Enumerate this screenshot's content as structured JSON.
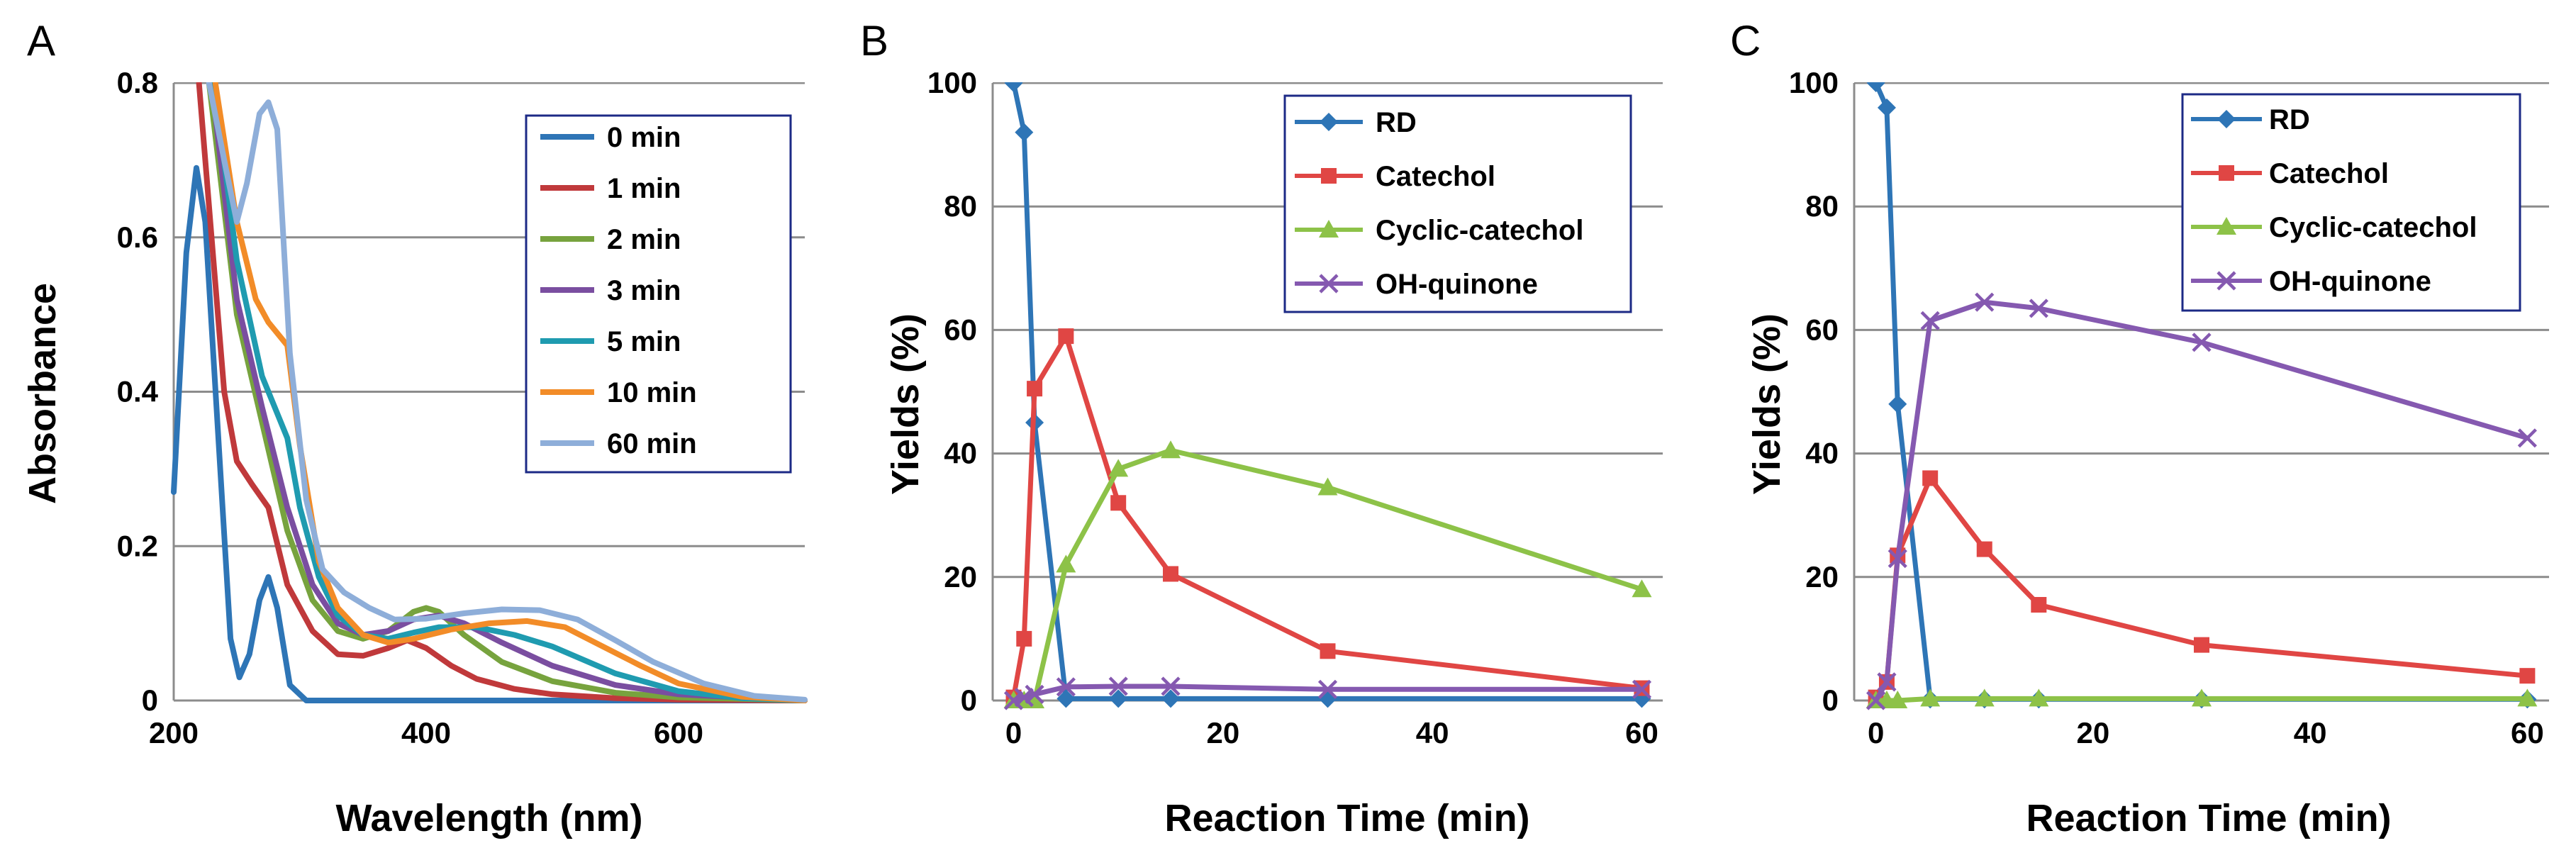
{
  "chart_data": [
    {
      "panel": "A",
      "type": "line",
      "xlabel": "Wavelength (nm)",
      "ylabel": "Absorbance",
      "xlim": [
        200,
        700
      ],
      "ylim": [
        0,
        0.8
      ],
      "xticks": [
        200,
        400,
        600
      ],
      "yticks": [
        0,
        0.2,
        0.4,
        0.6,
        0.8
      ],
      "xtick_labels": [
        "200",
        "400",
        "600"
      ],
      "ytick_labels": [
        "0",
        "0.2",
        "0.4",
        "0.6",
        "0.8"
      ],
      "legend_position": "top-right",
      "series": [
        {
          "name": "0 min",
          "color": "#2e75b6",
          "points": [
            [
              200,
              0.27
            ],
            [
              210,
              0.58
            ],
            [
              218,
              0.69
            ],
            [
              225,
              0.62
            ],
            [
              235,
              0.35
            ],
            [
              245,
              0.08
            ],
            [
              252,
              0.03
            ],
            [
              260,
              0.06
            ],
            [
              268,
              0.13
            ],
            [
              275,
              0.16
            ],
            [
              282,
              0.12
            ],
            [
              292,
              0.02
            ],
            [
              305,
              0
            ],
            [
              700,
              0
            ]
          ]
        },
        {
          "name": "1 min",
          "color": "#c0393b",
          "points": [
            [
              220,
              0.8
            ],
            [
              230,
              0.6
            ],
            [
              240,
              0.4
            ],
            [
              250,
              0.31
            ],
            [
              262,
              0.28
            ],
            [
              275,
              0.25
            ],
            [
              290,
              0.15
            ],
            [
              310,
              0.09
            ],
            [
              330,
              0.06
            ],
            [
              350,
              0.058
            ],
            [
              370,
              0.068
            ],
            [
              385,
              0.078
            ],
            [
              400,
              0.068
            ],
            [
              420,
              0.045
            ],
            [
              440,
              0.028
            ],
            [
              470,
              0.015
            ],
            [
              500,
              0.008
            ],
            [
              550,
              0.003
            ],
            [
              600,
              0.001
            ],
            [
              700,
              0
            ]
          ]
        },
        {
          "name": "2 min",
          "color": "#77a33e",
          "points": [
            [
              228,
              0.8
            ],
            [
              250,
              0.5
            ],
            [
              270,
              0.36
            ],
            [
              290,
              0.22
            ],
            [
              310,
              0.13
            ],
            [
              330,
              0.09
            ],
            [
              350,
              0.08
            ],
            [
              370,
              0.09
            ],
            [
              390,
              0.115
            ],
            [
              400,
              0.12
            ],
            [
              410,
              0.115
            ],
            [
              430,
              0.085
            ],
            [
              460,
              0.05
            ],
            [
              500,
              0.025
            ],
            [
              550,
              0.01
            ],
            [
              600,
              0.004
            ],
            [
              700,
              0
            ]
          ]
        },
        {
          "name": "3 min",
          "color": "#7a4ea0",
          "points": [
            [
              230,
              0.8
            ],
            [
              250,
              0.52
            ],
            [
              270,
              0.38
            ],
            [
              290,
              0.25
            ],
            [
              310,
              0.15
            ],
            [
              330,
              0.1
            ],
            [
              350,
              0.085
            ],
            [
              370,
              0.09
            ],
            [
              390,
              0.105
            ],
            [
              410,
              0.11
            ],
            [
              430,
              0.1
            ],
            [
              460,
              0.075
            ],
            [
              500,
              0.045
            ],
            [
              550,
              0.02
            ],
            [
              600,
              0.008
            ],
            [
              700,
              0
            ]
          ]
        },
        {
          "name": "5 min",
          "color": "#1f9bb0",
          "points": [
            [
              232,
              0.8
            ],
            [
              250,
              0.57
            ],
            [
              270,
              0.42
            ],
            [
              290,
              0.34
            ],
            [
              300,
              0.25
            ],
            [
              315,
              0.16
            ],
            [
              330,
              0.11
            ],
            [
              350,
              0.085
            ],
            [
              370,
              0.08
            ],
            [
              390,
              0.088
            ],
            [
              410,
              0.095
            ],
            [
              440,
              0.095
            ],
            [
              470,
              0.085
            ],
            [
              500,
              0.07
            ],
            [
              550,
              0.035
            ],
            [
              600,
              0.012
            ],
            [
              650,
              0.003
            ],
            [
              700,
              0
            ]
          ]
        },
        {
          "name": "10 min",
          "color": "#f28c28",
          "points": [
            [
              233,
              0.8
            ],
            [
              250,
              0.62
            ],
            [
              265,
              0.52
            ],
            [
              275,
              0.49
            ],
            [
              290,
              0.46
            ],
            [
              300,
              0.33
            ],
            [
              315,
              0.18
            ],
            [
              330,
              0.12
            ],
            [
              350,
              0.085
            ],
            [
              370,
              0.075
            ],
            [
              390,
              0.08
            ],
            [
              420,
              0.092
            ],
            [
              450,
              0.1
            ],
            [
              480,
              0.103
            ],
            [
              510,
              0.095
            ],
            [
              540,
              0.07
            ],
            [
              570,
              0.045
            ],
            [
              600,
              0.022
            ],
            [
              650,
              0.005
            ],
            [
              700,
              0
            ]
          ]
        },
        {
          "name": "60 min",
          "color": "#8eaed9",
          "points": [
            [
              228,
              0.8
            ],
            [
              240,
              0.7
            ],
            [
              250,
              0.62
            ],
            [
              258,
              0.67
            ],
            [
              268,
              0.76
            ],
            [
              275,
              0.775
            ],
            [
              282,
              0.74
            ],
            [
              292,
              0.45
            ],
            [
              305,
              0.26
            ],
            [
              318,
              0.17
            ],
            [
              335,
              0.14
            ],
            [
              355,
              0.12
            ],
            [
              375,
              0.105
            ],
            [
              400,
              0.106
            ],
            [
              430,
              0.113
            ],
            [
              460,
              0.118
            ],
            [
              490,
              0.117
            ],
            [
              520,
              0.105
            ],
            [
              550,
              0.078
            ],
            [
              580,
              0.05
            ],
            [
              620,
              0.022
            ],
            [
              660,
              0.006
            ],
            [
              700,
              0.001
            ]
          ]
        }
      ]
    },
    {
      "panel": "B",
      "type": "line",
      "xlabel": "Reaction Time (min)",
      "ylabel": "Yields (%)",
      "xlim": [
        -2,
        62
      ],
      "ylim": [
        0,
        100
      ],
      "xticks": [
        0,
        20,
        40,
        60
      ],
      "yticks": [
        0,
        20,
        40,
        60,
        80,
        100
      ],
      "xtick_labels": [
        "0",
        "20",
        "40",
        "60"
      ],
      "ytick_labels": [
        "0",
        "20",
        "40",
        "60",
        "80",
        "100"
      ],
      "legend_position": "top-right",
      "x": [
        0,
        1,
        2,
        5,
        10,
        15,
        30,
        60
      ],
      "series": [
        {
          "name": "RD",
          "color": "#2e75b6",
          "marker": "diamond",
          "values": [
            100,
            92,
            45,
            0.3,
            0.3,
            0.3,
            0.3,
            0.3
          ]
        },
        {
          "name": "Catechol",
          "color": "#e04644",
          "marker": "square",
          "values": [
            0.5,
            10,
            50.5,
            59,
            32,
            20.5,
            8,
            2
          ]
        },
        {
          "name": "Cyclic-catechol",
          "color": "#8dc248",
          "marker": "triangle",
          "values": [
            0,
            0,
            0,
            22,
            37.5,
            40.5,
            34.5,
            18
          ]
        },
        {
          "name": "OH-quinone",
          "color": "#8559b0",
          "marker": "x",
          "values": [
            0,
            0.5,
            1,
            2.2,
            2.3,
            2.3,
            1.8,
            1.8
          ]
        }
      ]
    },
    {
      "panel": "C",
      "type": "line",
      "xlabel": "Reaction Time (min)",
      "ylabel": "Yields (%)",
      "xlim": [
        -2,
        62
      ],
      "ylim": [
        0,
        100
      ],
      "xticks": [
        0,
        20,
        40,
        60
      ],
      "yticks": [
        0,
        20,
        40,
        60,
        80,
        100
      ],
      "xtick_labels": [
        "0",
        "20",
        "40",
        "60"
      ],
      "ytick_labels": [
        "0",
        "20",
        "40",
        "60",
        "80",
        "100"
      ],
      "legend_position": "top-right",
      "x": [
        0,
        1,
        2,
        5,
        10,
        15,
        30,
        60
      ],
      "series": [
        {
          "name": "RD",
          "color": "#2e75b6",
          "marker": "diamond",
          "values": [
            100,
            96,
            48,
            0.2,
            0.2,
            0.2,
            0.2,
            0.2
          ]
        },
        {
          "name": "Catechol",
          "color": "#e04644",
          "marker": "square",
          "values": [
            0.5,
            3,
            23.5,
            36,
            24.5,
            15.5,
            9,
            4
          ]
        },
        {
          "name": "Cyclic-catechol",
          "color": "#8dc248",
          "marker": "triangle",
          "values": [
            0,
            0,
            0,
            0.3,
            0.3,
            0.3,
            0.3,
            0.3
          ]
        },
        {
          "name": "OH-quinone",
          "color": "#8559b0",
          "marker": "x",
          "values": [
            0,
            3,
            23,
            61.5,
            64.5,
            63.5,
            58,
            42.5
          ]
        }
      ]
    }
  ]
}
